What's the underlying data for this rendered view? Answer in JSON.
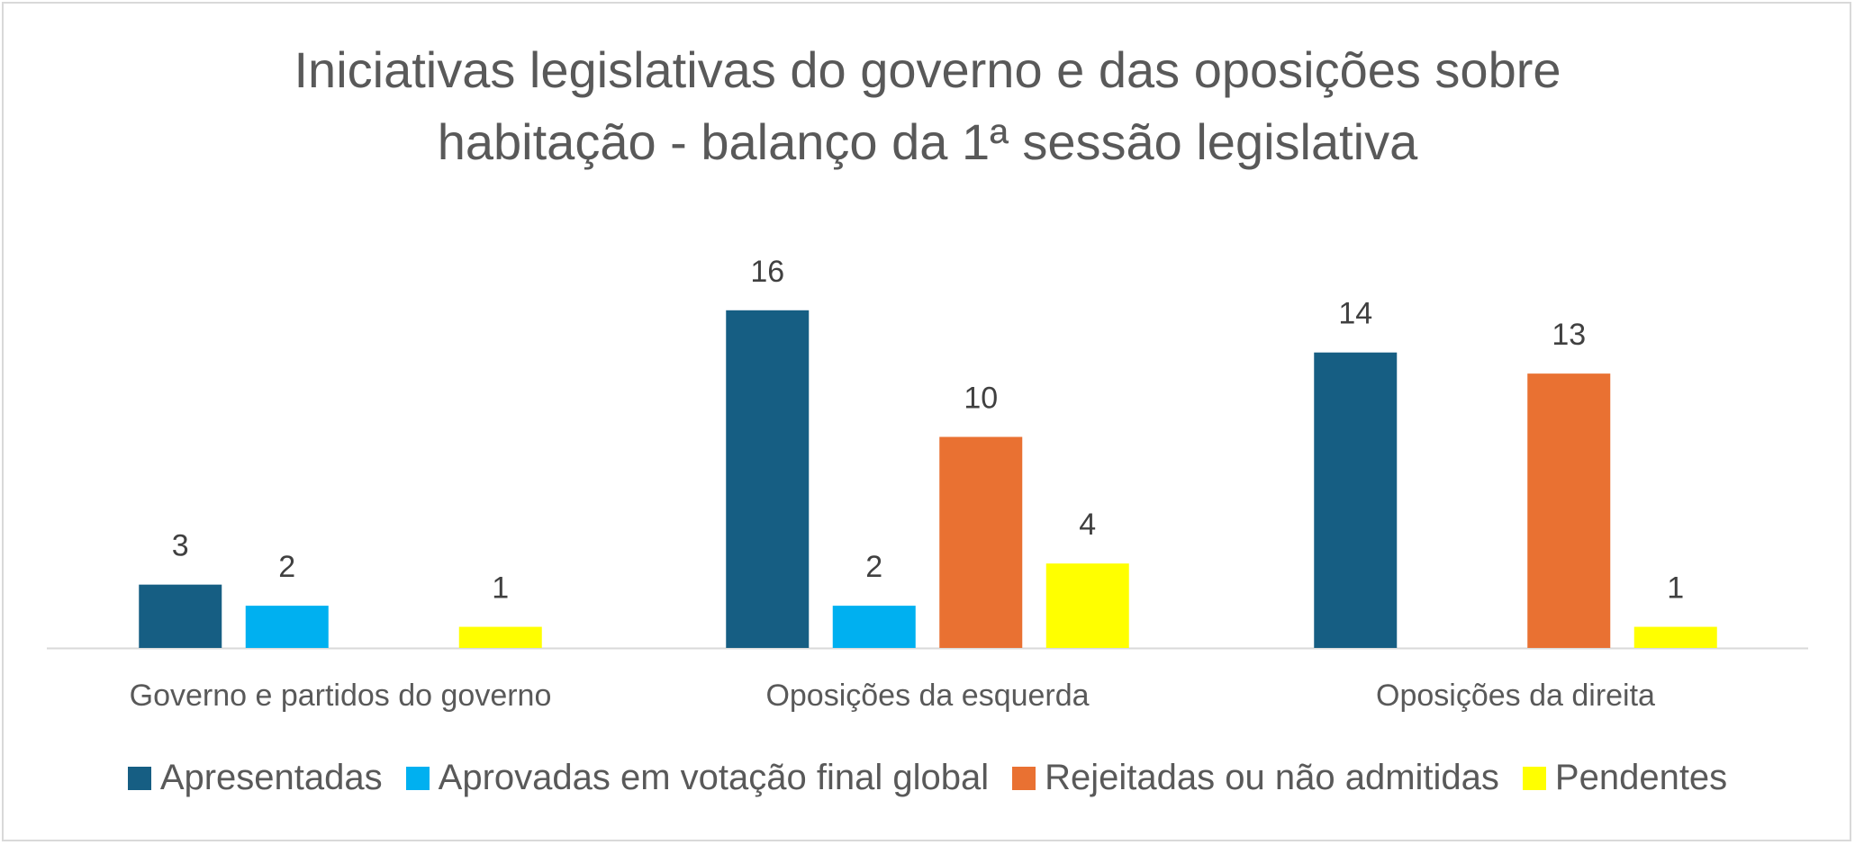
{
  "chart_data": {
    "type": "bar",
    "title_lines": [
      "Iniciativas legislativas do governo e das oposições sobre",
      "habitação - balanço da 1ª sessão legislativa"
    ],
    "categories": [
      "Governo e partidos do governo",
      "Oposições da esquerda",
      "Oposições da direita"
    ],
    "series": [
      {
        "name": "Apresentadas",
        "color": "#165E83",
        "values": [
          3,
          16,
          14
        ]
      },
      {
        "name": "Aprovadas em votação final global",
        "color": "#00B0F0",
        "values": [
          2,
          2,
          null
        ]
      },
      {
        "name": "Rejeitadas ou não admitidas",
        "color": "#E97132",
        "values": [
          null,
          10,
          13
        ]
      },
      {
        "name": "Pendentes",
        "color": "#FFFF00",
        "values": [
          1,
          4,
          1
        ]
      }
    ],
    "ylim": [
      0,
      18
    ],
    "grid": false,
    "legend_position": "bottom"
  }
}
